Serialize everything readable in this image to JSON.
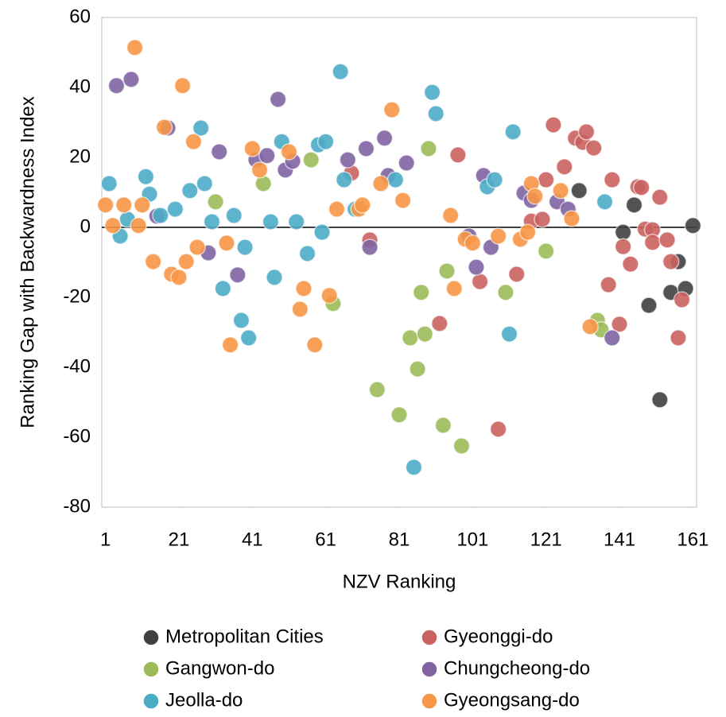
{
  "chart_data": {
    "type": "scatter",
    "x_label": "NZV Ranking",
    "y_label": "Ranking Gap with Backwardness Index",
    "xlim": [
      0,
      162
    ],
    "xticks": [
      1,
      21,
      41,
      61,
      81,
      101,
      121,
      141,
      161
    ],
    "ylim": [
      -80,
      60
    ],
    "yticks": [
      -80,
      -60,
      -40,
      -20,
      0,
      20,
      40,
      60
    ],
    "grid": false,
    "legend": "bottom",
    "series": [
      {
        "name": "Metropolitan Cities",
        "color": "#404040",
        "x": [
          130,
          145,
          142,
          149,
          152,
          155,
          157,
          159,
          161
        ],
        "values": [
          10.5,
          6.4,
          -1.4,
          -22.3,
          -49.3,
          -18.6,
          -9.8,
          -17.5,
          0.5
        ]
      },
      {
        "name": "Gyeonggi-do",
        "color": "#c9625f",
        "x": [
          68,
          73,
          97,
          92,
          103,
          108,
          113,
          117,
          120,
          121,
          123,
          126,
          129,
          131,
          132,
          134,
          139,
          138,
          141,
          142,
          144,
          146,
          147,
          148,
          150,
          150,
          152,
          154,
          155,
          157,
          158
        ],
        "values": [
          15.5,
          -3.6,
          20.7,
          -27.5,
          -15.5,
          -57.7,
          -13.4,
          1.8,
          2.3,
          13.6,
          29.3,
          17.3,
          25.5,
          24.3,
          27.3,
          22.7,
          13.6,
          -16.4,
          -27.7,
          -5.5,
          -10.5,
          11.6,
          11.4,
          -0.5,
          -0.7,
          -4.3,
          8.6,
          -3.6,
          -9.8,
          -31.6,
          -20.7
        ]
      },
      {
        "name": "Gangwon-do",
        "color": "#9bbb59",
        "x": [
          31,
          44,
          57,
          63,
          75,
          81,
          87,
          84,
          86,
          88,
          89,
          93,
          94,
          98,
          110,
          121,
          135,
          136
        ],
        "values": [
          7.3,
          12.5,
          19.3,
          -21.8,
          -46.4,
          -53.6,
          -18.6,
          -31.6,
          -40.5,
          -30.5,
          22.5,
          -56.6,
          -12.5,
          -62.5,
          -18.6,
          -6.8,
          -26.6,
          -29.3
        ]
      },
      {
        "name": "Chungcheong-do",
        "color": "#8064a2",
        "x": [
          4,
          8,
          15,
          18,
          29,
          32,
          37,
          42,
          45,
          48,
          50,
          52,
          67,
          72,
          73,
          77,
          78,
          83,
          100,
          102,
          104,
          106,
          115,
          117,
          124,
          127,
          139
        ],
        "values": [
          40.5,
          42.3,
          3.2,
          28.4,
          -7.3,
          21.6,
          -13.6,
          19.3,
          20.5,
          36.6,
          16.4,
          18.9,
          19.3,
          22.5,
          -5.7,
          25.5,
          14.8,
          18.4,
          -2.5,
          -11.4,
          14.8,
          -5.7,
          9.8,
          7.7,
          7.3,
          5.2,
          -31.6
        ]
      },
      {
        "name": "Jeolla-do",
        "color": "#4bacc6",
        "x": [
          2,
          5,
          7,
          12,
          13,
          16,
          20,
          24,
          27,
          28,
          30,
          33,
          36,
          38,
          39,
          40,
          46,
          47,
          49,
          53,
          56,
          59,
          60,
          61,
          65,
          66,
          69,
          80,
          90,
          91,
          105,
          107,
          111,
          112,
          137,
          85
        ],
        "values": [
          12.5,
          -2.5,
          2.3,
          14.5,
          9.5,
          3.4,
          5.2,
          10.5,
          28.4,
          12.5,
          1.6,
          -17.5,
          3.4,
          -26.6,
          -5.7,
          -31.6,
          1.6,
          -14.3,
          24.5,
          1.6,
          -7.5,
          23.6,
          -1.4,
          24.5,
          44.5,
          13.6,
          5.2,
          13.6,
          38.6,
          32.5,
          11.6,
          13.6,
          -30.5,
          27.3,
          7.3,
          -68.6
        ]
      },
      {
        "name": "Gyeongsang-do",
        "color": "#f79646",
        "x": [
          1,
          3,
          6,
          9,
          10,
          11,
          14,
          17,
          19,
          21,
          22,
          23,
          25,
          26,
          34,
          35,
          41,
          43,
          51,
          54,
          55,
          58,
          62,
          64,
          70,
          71,
          76,
          79,
          82,
          95,
          96,
          99,
          101,
          108,
          114,
          116,
          117,
          118,
          125,
          128,
          133
        ],
        "values": [
          6.4,
          0.5,
          6.4,
          51.4,
          0.5,
          6.4,
          -9.8,
          28.6,
          -13.4,
          -14.3,
          40.5,
          -9.8,
          24.5,
          -5.7,
          -4.5,
          -33.6,
          22.5,
          16.4,
          21.6,
          -23.4,
          -17.5,
          -33.6,
          -19.5,
          5.2,
          5.2,
          6.4,
          12.5,
          33.6,
          7.7,
          3.4,
          -17.5,
          -3.4,
          -4.5,
          -2.5,
          -3.4,
          -1.4,
          12.5,
          8.9,
          10.5,
          2.5,
          -28.4
        ]
      }
    ]
  }
}
